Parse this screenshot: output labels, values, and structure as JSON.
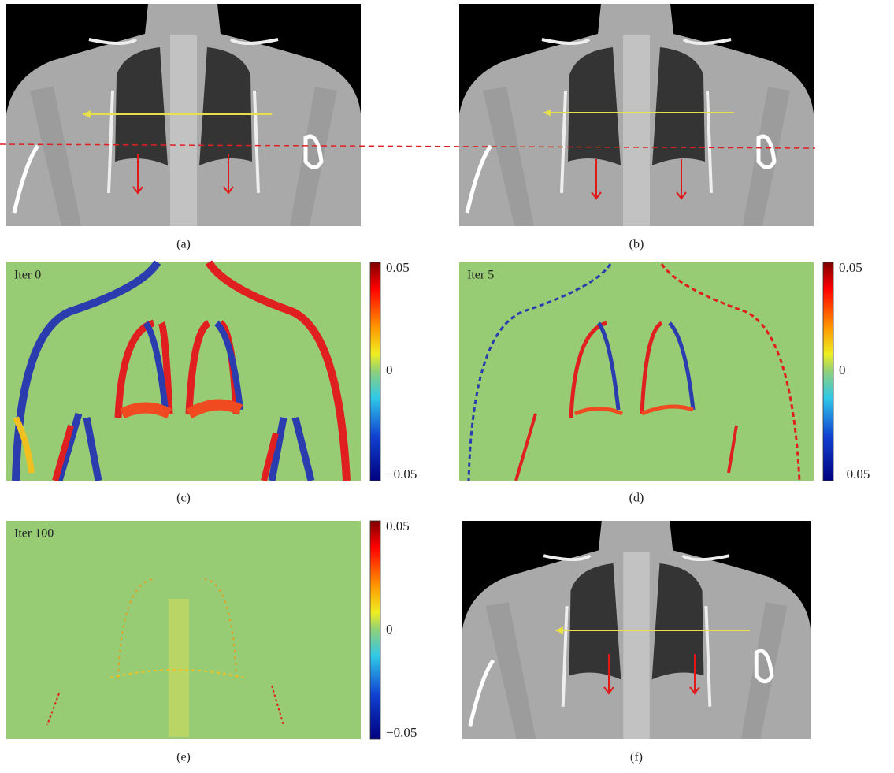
{
  "panels": [
    {
      "label": "(a)"
    },
    {
      "label": "(b)"
    },
    {
      "label": "(c)",
      "title": "Iter 0",
      "colorbar": [
        "0.05",
        "0",
        "−0.05"
      ]
    },
    {
      "label": "(d)",
      "title": "Iter 5",
      "colorbar": [
        "0.05",
        "0",
        "−0.05"
      ]
    },
    {
      "label": "(e)",
      "title": "Iter 100",
      "colorbar": [
        "0.05",
        "0",
        "−0.05"
      ]
    },
    {
      "label": "(f)"
    }
  ]
}
